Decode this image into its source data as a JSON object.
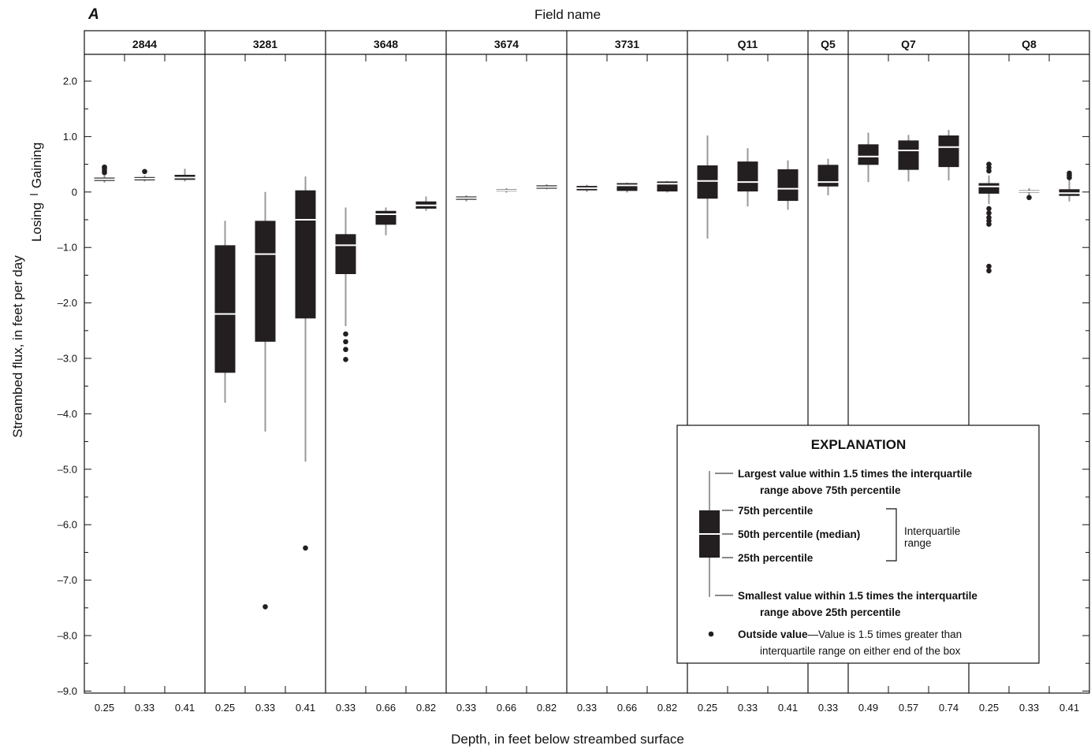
{
  "chart_data": {
    "type": "boxplot",
    "panel_label": "A",
    "top_axis_title": "Field name",
    "xlabel": "Depth, in feet below streambed surface",
    "ylabel": "Streambed flux, in feet per day",
    "ylabel_gaining": "Gaining",
    "ylabel_losing": "Losing",
    "ylim": [
      -9.0,
      2.5
    ],
    "y_ticks": [
      2.0,
      1.0,
      0,
      -1.0,
      -2.0,
      -3.0,
      -4.0,
      -5.0,
      -6.0,
      -7.0,
      -8.0,
      -9.0
    ],
    "y_tick_labels": [
      "2.0",
      "1.0",
      "0",
      "–1.0",
      "–2.0",
      "–3.0",
      "–4.0",
      "–5.0",
      "–6.0",
      "–7.0",
      "–8.0",
      "–9.0"
    ],
    "fields": [
      {
        "name": "2844",
        "boxes": [
          {
            "depth": "0.25",
            "whisker_low": 0.17,
            "q1": 0.2,
            "median": 0.23,
            "q3": 0.26,
            "whisker_high": 0.3,
            "outliers": [
              0.35,
              0.39,
              0.43,
              0.45
            ]
          },
          {
            "depth": "0.33",
            "whisker_low": 0.19,
            "q1": 0.21,
            "median": 0.24,
            "q3": 0.27,
            "whisker_high": 0.3,
            "outliers": [
              0.37
            ]
          },
          {
            "depth": "0.41",
            "whisker_low": 0.19,
            "q1": 0.22,
            "median": 0.26,
            "q3": 0.31,
            "whisker_high": 0.42,
            "outliers": []
          }
        ]
      },
      {
        "name": "3281",
        "boxes": [
          {
            "depth": "0.25",
            "whisker_low": -3.8,
            "q1": -3.26,
            "median": -2.2,
            "q3": -0.96,
            "whisker_high": -0.52,
            "outliers": []
          },
          {
            "depth": "0.33",
            "whisker_low": -4.32,
            "q1": -2.7,
            "median": -1.12,
            "q3": -0.52,
            "whisker_high": 0.0,
            "outliers": [
              -7.48
            ]
          },
          {
            "depth": "0.41",
            "whisker_low": -4.86,
            "q1": -2.28,
            "median": -0.5,
            "q3": 0.03,
            "whisker_high": 0.28,
            "outliers": [
              -6.42
            ]
          }
        ]
      },
      {
        "name": "3648",
        "boxes": [
          {
            "depth": "0.33",
            "whisker_low": -2.42,
            "q1": -1.48,
            "median": -0.96,
            "q3": -0.76,
            "whisker_high": -0.28,
            "outliers": [
              -2.56,
              -2.7,
              -2.84,
              -3.02
            ]
          },
          {
            "depth": "0.66",
            "whisker_low": -0.78,
            "q1": -0.59,
            "median": -0.4,
            "q3": -0.34,
            "whisker_high": -0.28,
            "outliers": []
          },
          {
            "depth": "0.82",
            "whisker_low": -0.34,
            "q1": -0.3,
            "median": -0.24,
            "q3": -0.17,
            "whisker_high": -0.08,
            "outliers": []
          }
        ]
      },
      {
        "name": "3674",
        "boxes": [
          {
            "depth": "0.33",
            "whisker_low": -0.17,
            "q1": -0.14,
            "median": -0.11,
            "q3": -0.08,
            "whisker_high": -0.06,
            "outliers": []
          },
          {
            "depth": "0.66",
            "whisker_low": -0.01,
            "q1": 0.01,
            "median": 0.03,
            "q3": 0.05,
            "whisker_high": 0.07,
            "outliers": []
          },
          {
            "depth": "0.82",
            "whisker_low": 0.05,
            "q1": 0.06,
            "median": 0.09,
            "q3": 0.12,
            "whisker_high": 0.14,
            "outliers": []
          }
        ]
      },
      {
        "name": "3731",
        "boxes": [
          {
            "depth": "0.33",
            "whisker_low": 0.0,
            "q1": 0.03,
            "median": 0.07,
            "q3": 0.11,
            "whisker_high": 0.13,
            "outliers": []
          },
          {
            "depth": "0.66",
            "whisker_low": -0.01,
            "q1": 0.02,
            "median": 0.12,
            "q3": 0.16,
            "whisker_high": 0.17,
            "outliers": []
          },
          {
            "depth": "0.82",
            "whisker_low": -0.01,
            "q1": 0.01,
            "median": 0.15,
            "q3": 0.19,
            "whisker_high": 0.2,
            "outliers": []
          }
        ]
      },
      {
        "name": "Q11",
        "boxes": [
          {
            "depth": "0.25",
            "whisker_low": -0.84,
            "q1": -0.12,
            "median": 0.2,
            "q3": 0.48,
            "whisker_high": 1.02,
            "outliers": []
          },
          {
            "depth": "0.33",
            "whisker_low": -0.26,
            "q1": 0.01,
            "median": 0.18,
            "q3": 0.55,
            "whisker_high": 0.79,
            "outliers": []
          },
          {
            "depth": "0.41",
            "whisker_low": -0.32,
            "q1": -0.16,
            "median": 0.06,
            "q3": 0.41,
            "whisker_high": 0.57,
            "outliers": []
          }
        ]
      },
      {
        "name": "Q5",
        "boxes": [
          {
            "depth": "0.33",
            "whisker_low": -0.06,
            "q1": 0.1,
            "median": 0.18,
            "q3": 0.49,
            "whisker_high": 0.6,
            "outliers": []
          }
        ]
      },
      {
        "name": "Q7",
        "boxes": [
          {
            "depth": "0.49",
            "whisker_low": 0.18,
            "q1": 0.49,
            "median": 0.64,
            "q3": 0.86,
            "whisker_high": 1.07,
            "outliers": []
          },
          {
            "depth": "0.57",
            "whisker_low": 0.19,
            "q1": 0.4,
            "median": 0.75,
            "q3": 0.93,
            "whisker_high": 1.03,
            "outliers": []
          },
          {
            "depth": "0.74",
            "whisker_low": 0.21,
            "q1": 0.45,
            "median": 0.81,
            "q3": 1.02,
            "whisker_high": 1.12,
            "outliers": []
          }
        ]
      },
      {
        "name": "Q8",
        "boxes": [
          {
            "depth": "0.25",
            "whisker_low": -0.22,
            "q1": -0.03,
            "median": 0.1,
            "q3": 0.16,
            "whisker_high": 0.3,
            "outliers": [
              0.38,
              0.44,
              0.5,
              -0.3,
              -0.38,
              -0.46,
              -0.52,
              -0.58,
              -1.34,
              -1.42
            ]
          },
          {
            "depth": "0.33",
            "whisker_low": -0.06,
            "q1": -0.01,
            "median": 0.01,
            "q3": 0.03,
            "whisker_high": 0.07,
            "outliers": [
              -0.1
            ]
          },
          {
            "depth": "0.41",
            "whisker_low": -0.17,
            "q1": -0.07,
            "median": -0.02,
            "q3": 0.05,
            "whisker_high": 0.22,
            "outliers": [
              0.26,
              0.3,
              0.34
            ]
          }
        ]
      }
    ],
    "legend": {
      "position": "bottom-right",
      "title": "EXPLANATION",
      "largest_line1": "Largest value within 1.5 times the interquartile",
      "largest_line2": "range above 75th percentile",
      "p75": "75th percentile",
      "p50": "50th percentile (median)",
      "p25": "25th percentile",
      "iqr_line1": "Interquartile",
      "iqr_line2": "range",
      "smallest_line1": "Smallest value within 1.5 times the interquartile",
      "smallest_line2": "range above 25th percentile",
      "outside_bold": "Outside value",
      "outside_rest": "—Value is 1.5 times greater than",
      "outside_line2": "interquartile range on either end of the box"
    },
    "colors": {
      "box": "#231f20",
      "whisker": "#9a9a9a",
      "median": "#ffffff",
      "outlier": "#231f20"
    },
    "grid": false
  }
}
